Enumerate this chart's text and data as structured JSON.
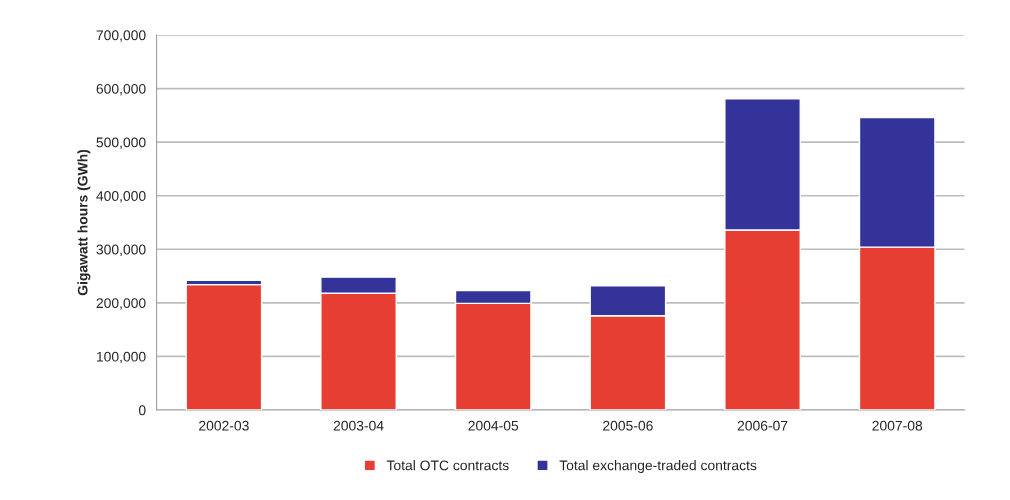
{
  "chart_data": {
    "type": "bar",
    "stacked": true,
    "ylabel": "Gigawatt hours (GWh)",
    "categories": [
      "2002-03",
      "2003-04",
      "2004-05",
      "2005-06",
      "2006-07",
      "2007-08"
    ],
    "series": [
      {
        "name": "Total OTC contracts",
        "color": "#e73e34",
        "values": [
          234000,
          218000,
          199000,
          176000,
          336000,
          304000
        ]
      },
      {
        "name": "Total exchange-traded contracts",
        "color": "#343399",
        "values": [
          8000,
          30000,
          24000,
          56000,
          245000,
          242000
        ]
      }
    ],
    "ylim": [
      0,
      700000
    ],
    "yticks": [
      0,
      {
        "value": 100000,
        "label": "100,000"
      },
      {
        "value": 200000,
        "label": "200,000"
      },
      {
        "value": 300000,
        "label": "300,000"
      },
      {
        "value": 400000,
        "label": "400,000"
      },
      {
        "value": 500000,
        "label": "500,000"
      },
      {
        "value": 600000,
        "label": "600,000"
      },
      {
        "value": 700000,
        "label": "700,000"
      }
    ],
    "grid": "y",
    "legend": "bottom"
  }
}
